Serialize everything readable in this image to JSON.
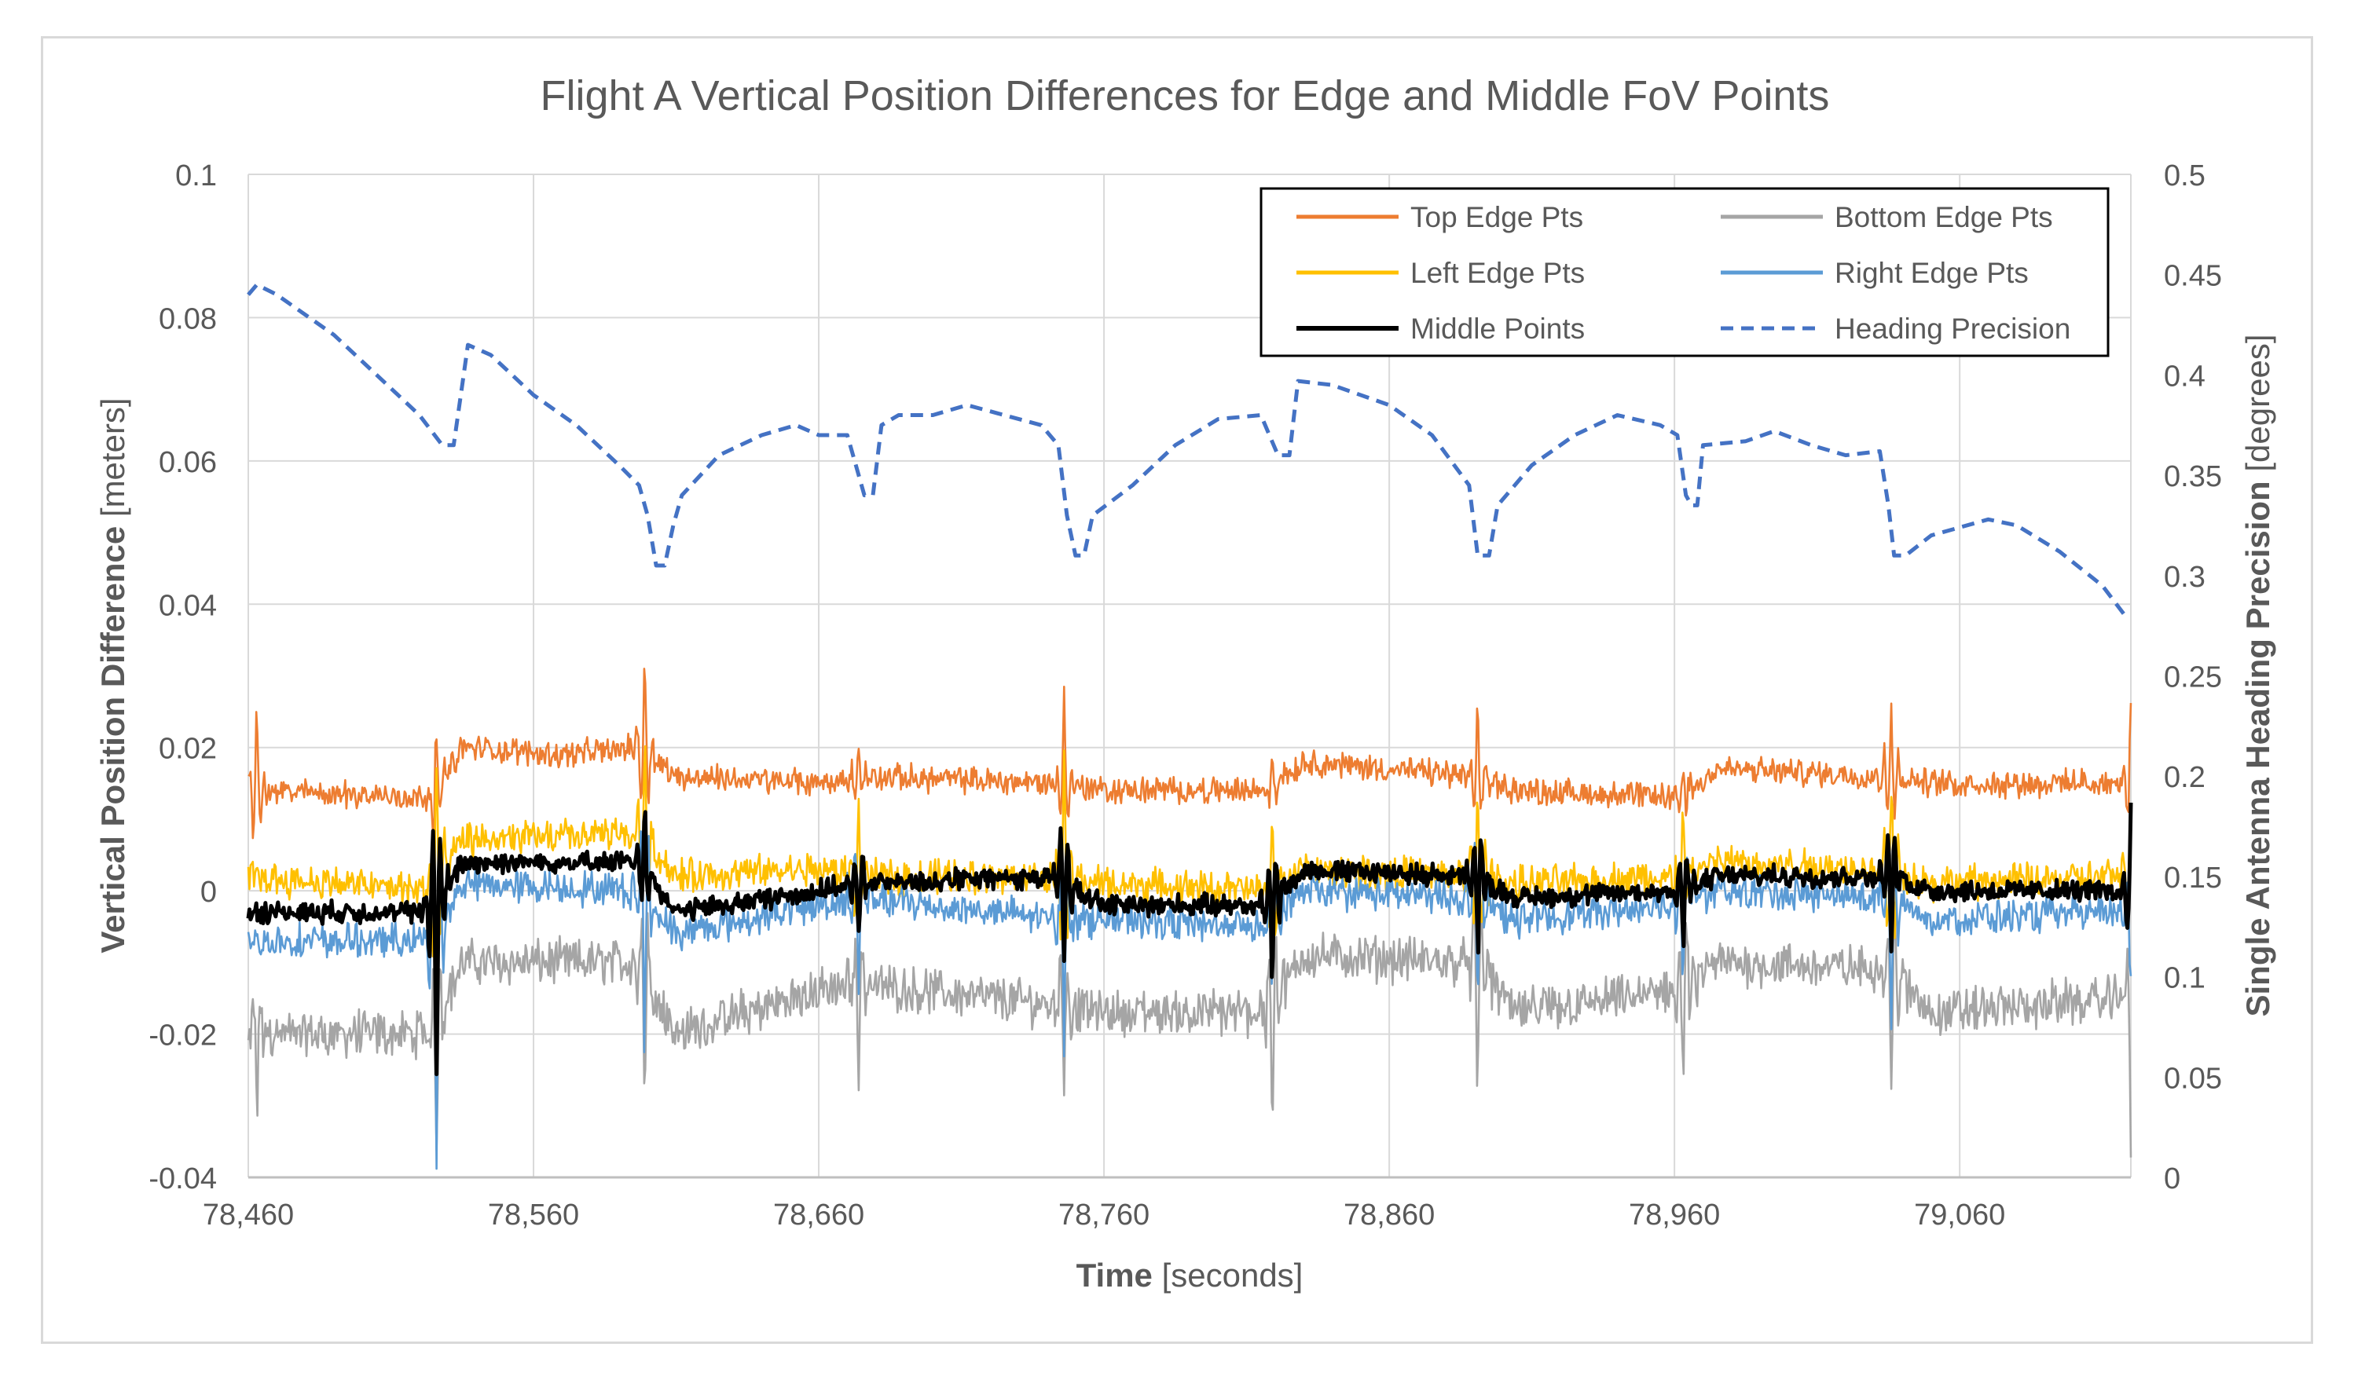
{
  "chart_data": {
    "type": "line",
    "title": "Flight A Vertical Position Differences for Edge and Middle FoV Points",
    "xlabel": {
      "bold": "Time",
      "normal": " [seconds]"
    },
    "ylabel": {
      "bold": "Vertical Position Difference",
      "normal": " [meters]"
    },
    "y2label": {
      "bold": "Single Antenna Heading Precision",
      "normal": " [degrees]"
    },
    "xlim": [
      78460,
      79120
    ],
    "ylim": [
      -0.04,
      0.1
    ],
    "y2lim": [
      0,
      0.5
    ],
    "x_ticks": [
      78460,
      78560,
      78660,
      78760,
      78860,
      78960,
      79060
    ],
    "x_tick_labels": [
      "78,460",
      "78,560",
      "78,660",
      "78,760",
      "78,860",
      "78,960",
      "79,060"
    ],
    "y_ticks": [
      -0.04,
      -0.02,
      0,
      0.02,
      0.04,
      0.06,
      0.08,
      0.1
    ],
    "y_tick_labels": [
      "-0.04",
      "-0.02",
      "0",
      "0.02",
      "0.04",
      "0.06",
      "0.08",
      "0.1"
    ],
    "y2_ticks": [
      0,
      0.05,
      0.1,
      0.15,
      0.2,
      0.25,
      0.3,
      0.35,
      0.4,
      0.45,
      0.5
    ],
    "y2_tick_labels": [
      "0",
      "0.05",
      "0.1",
      "0.15",
      "0.2",
      "0.25",
      "0.3",
      "0.35",
      "0.4",
      "0.45",
      "0.5"
    ],
    "grid": true,
    "legend_position": "top-right",
    "maneuver_times": [
      78526,
      78599,
      78674,
      78746,
      78819,
      78891,
      78963,
      79036,
      79120
    ],
    "series": [
      {
        "name": "Top Edge Pts",
        "color": "#ED7D31",
        "axis": "left",
        "dash": "solid",
        "base": [
          [
            78460,
            0.014
          ],
          [
            78525,
            0.013
          ],
          [
            78535,
            0.02
          ],
          [
            78570,
            0.019
          ],
          [
            78597,
            0.02
          ],
          [
            78610,
            0.016
          ],
          [
            78660,
            0.015
          ],
          [
            78675,
            0.016
          ],
          [
            78744,
            0.015
          ],
          [
            78760,
            0.014
          ],
          [
            78817,
            0.014
          ],
          [
            78830,
            0.018
          ],
          [
            78889,
            0.016
          ],
          [
            78905,
            0.014
          ],
          [
            78961,
            0.013
          ],
          [
            78975,
            0.017
          ],
          [
            79034,
            0.016
          ],
          [
            79050,
            0.015
          ],
          [
            79120,
            0.015
          ]
        ],
        "noise": 0.0014,
        "spikes": [
          [
            78463,
            0.027
          ],
          [
            78526,
            0.025
          ],
          [
            78599,
            0.037
          ],
          [
            78674,
            0.021
          ],
          [
            78746,
            0.029
          ],
          [
            78819,
            0.021
          ],
          [
            78891,
            0.029
          ],
          [
            78963,
            0.018
          ],
          [
            79036,
            0.03
          ],
          [
            79120,
            0.03
          ]
        ]
      },
      {
        "name": "Bottom Edge Pts",
        "color": "#A5A5A5",
        "axis": "left",
        "dash": "solid",
        "base": [
          [
            78460,
            -0.02
          ],
          [
            78525,
            -0.02
          ],
          [
            78535,
            -0.01
          ],
          [
            78597,
            -0.01
          ],
          [
            78610,
            -0.02
          ],
          [
            78660,
            -0.014
          ],
          [
            78675,
            -0.013
          ],
          [
            78744,
            -0.016
          ],
          [
            78760,
            -0.017
          ],
          [
            78817,
            -0.017
          ],
          [
            78830,
            -0.009
          ],
          [
            78889,
            -0.01
          ],
          [
            78905,
            -0.017
          ],
          [
            78961,
            -0.014
          ],
          [
            78975,
            -0.01
          ],
          [
            79034,
            -0.011
          ],
          [
            79050,
            -0.017
          ],
          [
            79120,
            -0.015
          ]
        ],
        "noise": 0.0024,
        "spikes": [
          [
            78463,
            -0.032
          ],
          [
            78526,
            -0.039
          ],
          [
            78599,
            -0.033
          ],
          [
            78674,
            -0.026
          ],
          [
            78746,
            -0.031
          ],
          [
            78819,
            -0.037
          ],
          [
            78891,
            -0.033
          ],
          [
            78963,
            -0.032
          ],
          [
            79036,
            -0.03
          ],
          [
            79120,
            -0.034
          ]
        ]
      },
      {
        "name": "Left Edge Pts",
        "color": "#FFC000",
        "axis": "left",
        "dash": "solid",
        "base": [
          [
            78460,
            0.002
          ],
          [
            78525,
            0.0
          ],
          [
            78535,
            0.007
          ],
          [
            78597,
            0.008
          ],
          [
            78610,
            0.002
          ],
          [
            78660,
            0.003
          ],
          [
            78675,
            0.002
          ],
          [
            78744,
            0.002
          ],
          [
            78760,
            0.001
          ],
          [
            78817,
            0.0
          ],
          [
            78830,
            0.003
          ],
          [
            78889,
            0.002
          ],
          [
            78905,
            0.001
          ],
          [
            78961,
            0.002
          ],
          [
            78975,
            0.004
          ],
          [
            79034,
            0.003
          ],
          [
            79050,
            0.001
          ],
          [
            79120,
            0.002
          ]
        ],
        "noise": 0.0018,
        "spikes": [
          [
            78526,
            0.023
          ],
          [
            78599,
            0.025
          ],
          [
            78674,
            0.013
          ],
          [
            78746,
            0.022
          ],
          [
            78819,
            0.012
          ],
          [
            78891,
            0.02
          ],
          [
            78963,
            0.012
          ],
          [
            79036,
            0.022
          ],
          [
            79120,
            0.015
          ]
        ]
      },
      {
        "name": "Right Edge Pts",
        "color": "#5B9BD5",
        "axis": "left",
        "dash": "solid",
        "base": [
          [
            78460,
            -0.007
          ],
          [
            78525,
            -0.007
          ],
          [
            78535,
            0.001
          ],
          [
            78597,
            0.0
          ],
          [
            78610,
            -0.006
          ],
          [
            78660,
            -0.002
          ],
          [
            78675,
            -0.001
          ],
          [
            78744,
            -0.004
          ],
          [
            78760,
            -0.004
          ],
          [
            78817,
            -0.005
          ],
          [
            78830,
            0.0
          ],
          [
            78889,
            -0.001
          ],
          [
            78905,
            -0.004
          ],
          [
            78961,
            -0.002
          ],
          [
            78975,
            0.0
          ],
          [
            79034,
            -0.001
          ],
          [
            79050,
            -0.004
          ],
          [
            79120,
            -0.003
          ]
        ],
        "noise": 0.0018,
        "spikes": [
          [
            78526,
            -0.037
          ],
          [
            78599,
            -0.025
          ],
          [
            78674,
            -0.017
          ],
          [
            78746,
            -0.022
          ],
          [
            78819,
            -0.016
          ],
          [
            78891,
            -0.022
          ],
          [
            78963,
            -0.016
          ],
          [
            79036,
            -0.022
          ],
          [
            79120,
            -0.016
          ]
        ]
      },
      {
        "name": "Middle Points",
        "color": "#000000",
        "axis": "left",
        "dash": "solid",
        "width": 5,
        "base": [
          [
            78460,
            -0.003
          ],
          [
            78525,
            -0.003
          ],
          [
            78535,
            0.004
          ],
          [
            78597,
            0.004
          ],
          [
            78610,
            -0.003
          ],
          [
            78660,
            0.0
          ],
          [
            78675,
            0.001
          ],
          [
            78744,
            0.002
          ],
          [
            78760,
            -0.002
          ],
          [
            78817,
            -0.002
          ],
          [
            78830,
            0.003
          ],
          [
            78889,
            0.002
          ],
          [
            78905,
            -0.001
          ],
          [
            78961,
            0.0
          ],
          [
            78975,
            0.002
          ],
          [
            79034,
            0.002
          ],
          [
            79050,
            0.0
          ],
          [
            79120,
            0.0
          ]
        ],
        "noise": 0.0011,
        "spikes": [
          [
            78526,
            -0.028
          ],
          [
            78599,
            0.012
          ],
          [
            78674,
            -0.01
          ],
          [
            78746,
            -0.013
          ],
          [
            78819,
            -0.017
          ],
          [
            78891,
            -0.012
          ],
          [
            78963,
            -0.011
          ],
          [
            79036,
            -0.011
          ],
          [
            79120,
            0.013
          ]
        ]
      },
      {
        "name": "Heading Precision",
        "color": "#4472C4",
        "axis": "right",
        "dash": "dashed",
        "points": [
          [
            78460,
            0.44
          ],
          [
            78463,
            0.445
          ],
          [
            78470,
            0.44
          ],
          [
            78490,
            0.42
          ],
          [
            78505,
            0.4
          ],
          [
            78520,
            0.38
          ],
          [
            78528,
            0.365
          ],
          [
            78532,
            0.365
          ],
          [
            78535,
            0.395
          ],
          [
            78537,
            0.415
          ],
          [
            78545,
            0.41
          ],
          [
            78560,
            0.39
          ],
          [
            78575,
            0.375
          ],
          [
            78590,
            0.355
          ],
          [
            78597,
            0.345
          ],
          [
            78600,
            0.33
          ],
          [
            78603,
            0.305
          ],
          [
            78606,
            0.305
          ],
          [
            78609,
            0.325
          ],
          [
            78612,
            0.34
          ],
          [
            78625,
            0.36
          ],
          [
            78640,
            0.37
          ],
          [
            78652,
            0.375
          ],
          [
            78660,
            0.37
          ],
          [
            78670,
            0.37
          ],
          [
            78673,
            0.355
          ],
          [
            78676,
            0.34
          ],
          [
            78679,
            0.34
          ],
          [
            78682,
            0.375
          ],
          [
            78688,
            0.38
          ],
          [
            78700,
            0.38
          ],
          [
            78712,
            0.385
          ],
          [
            78725,
            0.38
          ],
          [
            78738,
            0.375
          ],
          [
            78744,
            0.365
          ],
          [
            78747,
            0.33
          ],
          [
            78750,
            0.31
          ],
          [
            78753,
            0.31
          ],
          [
            78756,
            0.33
          ],
          [
            78770,
            0.345
          ],
          [
            78785,
            0.365
          ],
          [
            78800,
            0.378
          ],
          [
            78815,
            0.38
          ],
          [
            78818,
            0.37
          ],
          [
            78821,
            0.36
          ],
          [
            78825,
            0.36
          ],
          [
            78828,
            0.397
          ],
          [
            78840,
            0.395
          ],
          [
            78860,
            0.385
          ],
          [
            78875,
            0.37
          ],
          [
            78888,
            0.345
          ],
          [
            78891,
            0.31
          ],
          [
            78895,
            0.31
          ],
          [
            78898,
            0.335
          ],
          [
            78910,
            0.355
          ],
          [
            78925,
            0.37
          ],
          [
            78940,
            0.38
          ],
          [
            78955,
            0.375
          ],
          [
            78961,
            0.37
          ],
          [
            78964,
            0.34
          ],
          [
            78966,
            0.335
          ],
          [
            78968,
            0.335
          ],
          [
            78970,
            0.365
          ],
          [
            78985,
            0.367
          ],
          [
            78995,
            0.372
          ],
          [
            79008,
            0.365
          ],
          [
            79020,
            0.36
          ],
          [
            79032,
            0.362
          ],
          [
            79035,
            0.335
          ],
          [
            79037,
            0.31
          ],
          [
            79041,
            0.31
          ],
          [
            79050,
            0.32
          ],
          [
            79070,
            0.328
          ],
          [
            79080,
            0.325
          ],
          [
            79095,
            0.312
          ],
          [
            79110,
            0.295
          ],
          [
            79118,
            0.28
          ]
        ]
      }
    ]
  }
}
